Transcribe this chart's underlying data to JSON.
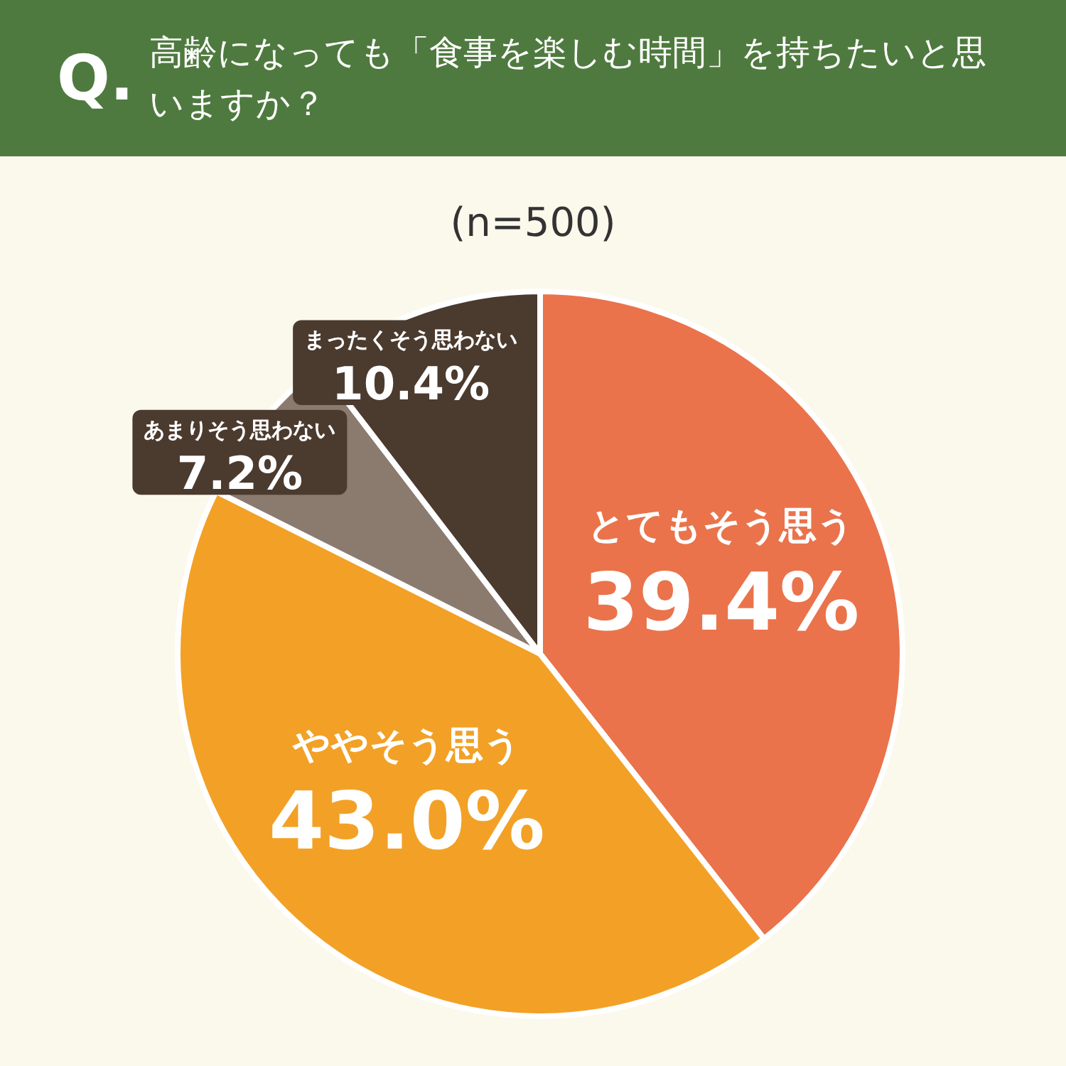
{
  "chart_data": {
    "type": "pie",
    "title": "高齢になっても「食事を楽しむ時間」を持ちたいと思いますか？",
    "subtitle": "(n=500)",
    "annotations": [
      "Q."
    ],
    "categories": [
      "とてもそう思う",
      "ややそう思う",
      "あまりそう思わない",
      "まったくそう思わない"
    ],
    "values": [
      39.4,
      43.0,
      7.2,
      10.4
    ],
    "colors": [
      "#ea734b",
      "#f2a126",
      "#8b7b6f",
      "#4b3a2e"
    ],
    "value_labels": [
      "39.4%",
      "43.0%",
      "7.2%",
      "10.4%"
    ]
  }
}
